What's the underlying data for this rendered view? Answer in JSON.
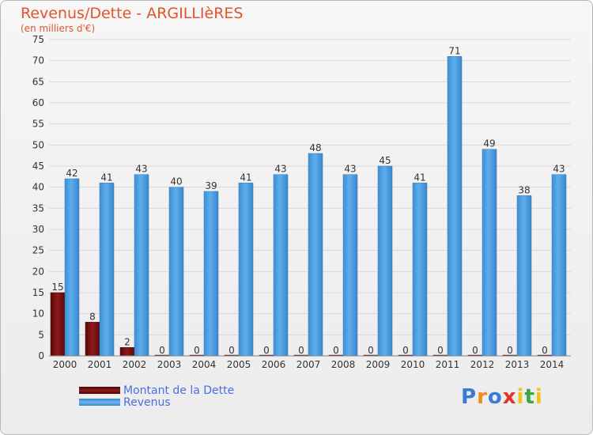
{
  "header": {
    "title": "Revenus/Dette - ARGILLIèRES",
    "subtitle": "(en milliers d'€)"
  },
  "legend": [
    {
      "label": "Montant de la Dette",
      "color": "#7a1010"
    },
    {
      "label": "Revenus",
      "color": "#4a9de0"
    }
  ],
  "logo": {
    "text": "Proxiti",
    "colors": [
      "#3a7bd5",
      "#f08a1c",
      "#3a7bd5",
      "#e0332c",
      "#f0c21c",
      "#3aa83a",
      "#f0c21c"
    ]
  },
  "colors": {
    "grid": "#d9d9d9",
    "axis": "#888888"
  },
  "chart_data": {
    "type": "bar",
    "title": "Revenus/Dette - ARGILLIèRES",
    "subtitle": "(en milliers d'€)",
    "categories": [
      "2000",
      "2001",
      "2002",
      "2003",
      "2004",
      "2005",
      "2006",
      "2007",
      "2008",
      "2009",
      "2010",
      "2011",
      "2012",
      "2013",
      "2014"
    ],
    "ylim": [
      0,
      75
    ],
    "yticks": [
      0,
      5,
      10,
      15,
      20,
      25,
      30,
      35,
      40,
      45,
      50,
      55,
      60,
      65,
      70,
      75
    ],
    "grid": true,
    "legend_position": "bottom-left",
    "series": [
      {
        "name": "Montant de la Dette",
        "color": "#7a1010",
        "values": [
          15,
          8,
          2,
          0,
          0,
          0,
          0,
          0,
          0,
          0,
          0,
          0,
          0,
          0,
          0
        ]
      },
      {
        "name": "Revenus",
        "color": "#4a9de0",
        "values": [
          42,
          41,
          43,
          40,
          39,
          41,
          43,
          48,
          43,
          45,
          41,
          71,
          49,
          38,
          43
        ]
      }
    ]
  }
}
